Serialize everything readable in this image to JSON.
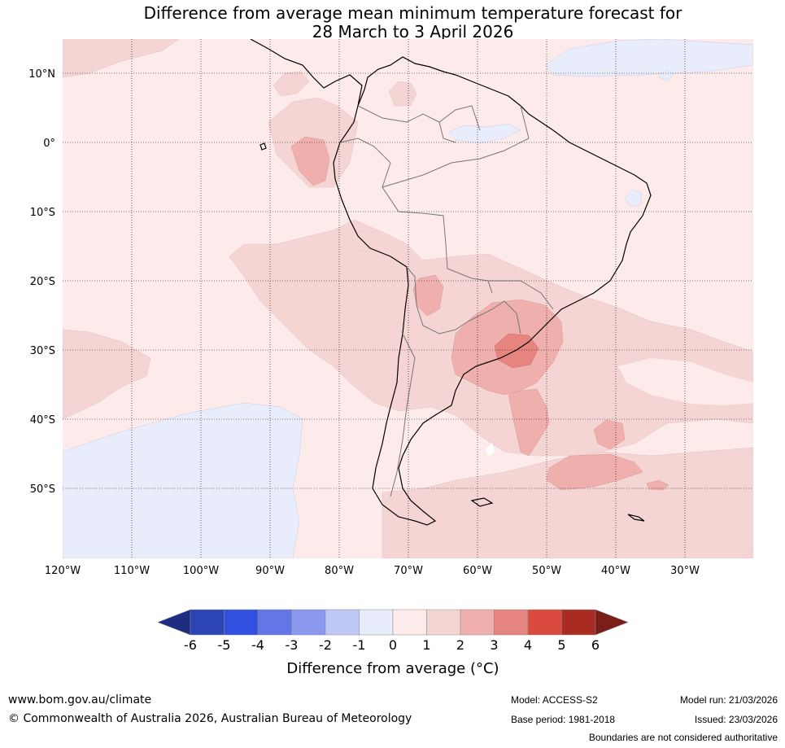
{
  "title": {
    "line1": "Difference from average mean minimum temperature forecast for",
    "line2": "28 March to 3 April 2026"
  },
  "map": {
    "lat_labels": [
      "10°N",
      "0°",
      "10°S",
      "20°S",
      "30°S",
      "40°S",
      "50°S"
    ],
    "lon_labels": [
      "120°W",
      "110°W",
      "100°W",
      "90°W",
      "80°W",
      "70°W",
      "60°W",
      "50°W",
      "40°W",
      "30°W"
    ],
    "colors": {
      "neg6": "#1f2d80",
      "neg5": "#2c45b5",
      "neg4": "#3150e0",
      "neg3": "#6276e6",
      "neg2": "#8a99ee",
      "neg1": "#c0c8f5",
      "zero_neg": "#e8ecfb",
      "zero_pos": "#fcebea",
      "pos1": "#f5d5d3",
      "pos2": "#eeafad",
      "pos3": "#e6857f",
      "pos4": "#db4a3f",
      "pos5": "#aa2b22",
      "pos6": "#7a1e1a"
    }
  },
  "colorbar": {
    "ticks": [
      "-6",
      "-5",
      "-4",
      "-3",
      "-2",
      "-1",
      "0",
      "1",
      "2",
      "3",
      "4",
      "5",
      "6"
    ],
    "label": "Difference from average (°C)"
  },
  "footer": {
    "website": "www.bom.gov.au/climate",
    "copyright": "© Commonwealth of Australia 2026, Australian Bureau of Meteorology",
    "model": "Model: ACCESS-S2",
    "base_period": "Base period: 1981-2018",
    "model_run": "Model run: 21/03/2026",
    "issued": "Issued: 23/03/2026",
    "disclaimer": "Boundaries are not considered authoritative"
  }
}
